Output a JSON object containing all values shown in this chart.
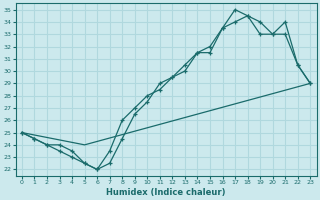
{
  "xlabel": "Humidex (Indice chaleur)",
  "xlim": [
    -0.5,
    23.5
  ],
  "ylim": [
    21.5,
    35.5
  ],
  "xticks": [
    0,
    1,
    2,
    3,
    4,
    5,
    6,
    7,
    8,
    9,
    10,
    11,
    12,
    13,
    14,
    15,
    16,
    17,
    18,
    19,
    20,
    21,
    22,
    23
  ],
  "yticks": [
    22,
    23,
    24,
    25,
    26,
    27,
    28,
    29,
    30,
    31,
    32,
    33,
    34,
    35
  ],
  "bg_color": "#cce9ed",
  "grid_color": "#b0d8de",
  "line_color": "#1a6b6b",
  "line1_x": [
    0,
    1,
    2,
    3,
    4,
    5,
    6,
    7,
    8,
    9,
    10,
    11,
    12,
    13,
    14,
    15,
    16,
    17,
    18,
    19,
    20,
    21,
    22,
    23
  ],
  "line1_y": [
    25.0,
    24.5,
    24.0,
    23.5,
    23.0,
    22.5,
    22.0,
    23.5,
    26.0,
    27.0,
    28.0,
    28.5,
    29.5,
    30.0,
    31.5,
    31.5,
    33.5,
    34.0,
    34.5,
    34.0,
    33.0,
    33.0,
    30.5,
    29.0
  ],
  "line2_x": [
    0,
    1,
    2,
    3,
    4,
    5,
    6,
    7,
    8,
    9,
    10,
    11,
    12,
    13,
    14,
    15,
    16,
    17,
    18,
    19,
    20,
    21,
    22,
    23
  ],
  "line2_y": [
    25.0,
    24.5,
    24.0,
    24.0,
    23.5,
    22.5,
    22.0,
    22.5,
    24.5,
    26.5,
    27.5,
    29.0,
    29.5,
    30.5,
    31.5,
    32.0,
    33.5,
    35.0,
    34.5,
    33.0,
    33.0,
    34.0,
    30.5,
    29.0
  ],
  "line3_x": [
    0,
    5,
    23
  ],
  "line3_y": [
    25.0,
    24.0,
    29.0
  ]
}
